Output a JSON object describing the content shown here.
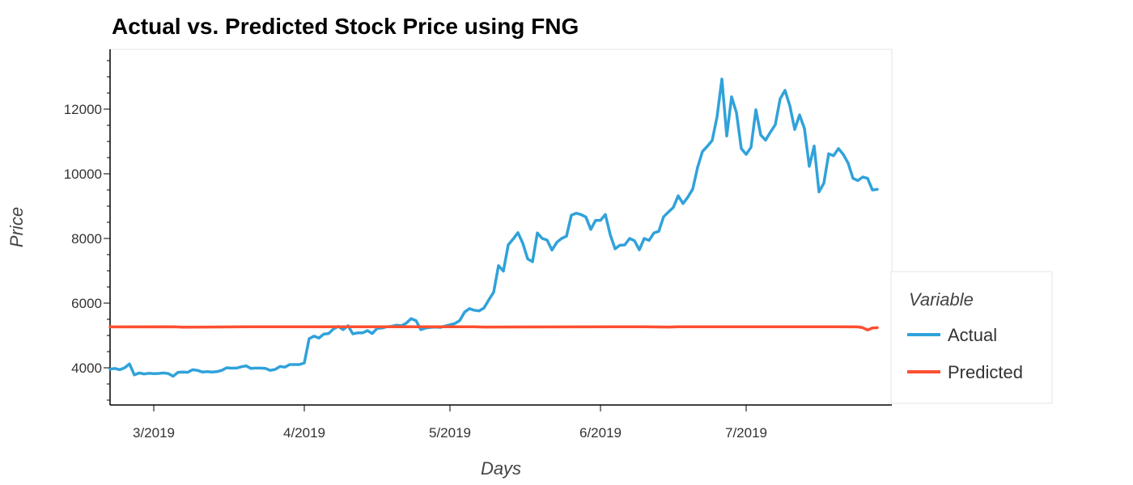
{
  "chart_data": {
    "type": "line",
    "title": "Actual vs. Predicted Stock Price using FNG",
    "xlabel": "Days",
    "ylabel": "Price",
    "x_tick_labels": [
      "3/2019",
      "4/2019",
      "5/2019",
      "6/2019",
      "7/2019"
    ],
    "y_tick_labels": [
      "4000",
      "6000",
      "8000",
      "10000",
      "12000"
    ],
    "ylim": [
      2850,
      13850
    ],
    "xlim": [
      "2019-02-20",
      "2019-07-31"
    ],
    "legend": {
      "title": "Variable",
      "position": "right"
    },
    "grid": false,
    "series": [
      {
        "name": "Actual",
        "color": "#30a2da",
        "points": [
          [
            "2019-02-20",
            3960
          ],
          [
            "2019-02-21",
            3980
          ],
          [
            "2019-02-22",
            3940
          ],
          [
            "2019-02-23",
            4000
          ],
          [
            "2019-02-24",
            4120
          ],
          [
            "2019-02-25",
            3780
          ],
          [
            "2019-02-26",
            3840
          ],
          [
            "2019-02-27",
            3810
          ],
          [
            "2019-02-28",
            3830
          ],
          [
            "2019-03-01",
            3820
          ],
          [
            "2019-03-02",
            3825
          ],
          [
            "2019-03-03",
            3840
          ],
          [
            "2019-03-04",
            3820
          ],
          [
            "2019-03-05",
            3740
          ],
          [
            "2019-03-06",
            3860
          ],
          [
            "2019-03-07",
            3870
          ],
          [
            "2019-03-08",
            3860
          ],
          [
            "2019-03-09",
            3940
          ],
          [
            "2019-03-10",
            3920
          ],
          [
            "2019-03-11",
            3870
          ],
          [
            "2019-03-12",
            3880
          ],
          [
            "2019-03-13",
            3870
          ],
          [
            "2019-03-14",
            3880
          ],
          [
            "2019-03-15",
            3920
          ],
          [
            "2019-03-16",
            4000
          ],
          [
            "2019-03-17",
            3990
          ],
          [
            "2019-03-18",
            3990
          ],
          [
            "2019-03-19",
            4030
          ],
          [
            "2019-03-20",
            4060
          ],
          [
            "2019-03-21",
            3980
          ],
          [
            "2019-03-22",
            3990
          ],
          [
            "2019-03-23",
            3990
          ],
          [
            "2019-03-24",
            3980
          ],
          [
            "2019-03-25",
            3920
          ],
          [
            "2019-03-26",
            3950
          ],
          [
            "2019-03-27",
            4040
          ],
          [
            "2019-03-28",
            4020
          ],
          [
            "2019-03-29",
            4100
          ],
          [
            "2019-03-30",
            4100
          ],
          [
            "2019-03-31",
            4100
          ],
          [
            "2019-04-01",
            4150
          ],
          [
            "2019-04-02",
            4900
          ],
          [
            "2019-04-03",
            4980
          ],
          [
            "2019-04-04",
            4920
          ],
          [
            "2019-04-05",
            5040
          ],
          [
            "2019-04-06",
            5060
          ],
          [
            "2019-04-07",
            5200
          ],
          [
            "2019-04-08",
            5280
          ],
          [
            "2019-04-09",
            5180
          ],
          [
            "2019-04-10",
            5300
          ],
          [
            "2019-04-11",
            5050
          ],
          [
            "2019-04-12",
            5080
          ],
          [
            "2019-04-13",
            5080
          ],
          [
            "2019-04-14",
            5150
          ],
          [
            "2019-04-15",
            5060
          ],
          [
            "2019-04-16",
            5220
          ],
          [
            "2019-04-17",
            5230
          ],
          [
            "2019-04-18",
            5270
          ],
          [
            "2019-04-19",
            5280
          ],
          [
            "2019-04-20",
            5320
          ],
          [
            "2019-04-21",
            5300
          ],
          [
            "2019-04-22",
            5380
          ],
          [
            "2019-04-23",
            5520
          ],
          [
            "2019-04-24",
            5460
          ],
          [
            "2019-04-25",
            5180
          ],
          [
            "2019-04-26",
            5230
          ],
          [
            "2019-04-27",
            5250
          ],
          [
            "2019-04-28",
            5260
          ],
          [
            "2019-04-29",
            5250
          ],
          [
            "2019-04-30",
            5290
          ],
          [
            "2019-05-01",
            5330
          ],
          [
            "2019-05-02",
            5370
          ],
          [
            "2019-05-03",
            5460
          ],
          [
            "2019-05-04",
            5720
          ],
          [
            "2019-05-05",
            5830
          ],
          [
            "2019-05-06",
            5780
          ],
          [
            "2019-05-07",
            5760
          ],
          [
            "2019-05-08",
            5850
          ],
          [
            "2019-05-09",
            6100
          ],
          [
            "2019-05-10",
            6340
          ],
          [
            "2019-05-11",
            7160
          ],
          [
            "2019-05-12",
            6990
          ],
          [
            "2019-05-13",
            7800
          ],
          [
            "2019-05-14",
            7980
          ],
          [
            "2019-05-15",
            8180
          ],
          [
            "2019-05-16",
            7850
          ],
          [
            "2019-05-17",
            7370
          ],
          [
            "2019-05-18",
            7280
          ],
          [
            "2019-05-19",
            8170
          ],
          [
            "2019-05-20",
            8000
          ],
          [
            "2019-05-21",
            7950
          ],
          [
            "2019-05-22",
            7640
          ],
          [
            "2019-05-23",
            7880
          ],
          [
            "2019-05-24",
            8000
          ],
          [
            "2019-05-25",
            8070
          ],
          [
            "2019-05-26",
            8720
          ],
          [
            "2019-05-27",
            8780
          ],
          [
            "2019-05-28",
            8740
          ],
          [
            "2019-05-29",
            8660
          ],
          [
            "2019-05-30",
            8280
          ],
          [
            "2019-05-31",
            8560
          ],
          [
            "2019-06-01",
            8560
          ],
          [
            "2019-06-02",
            8740
          ],
          [
            "2019-06-03",
            8120
          ],
          [
            "2019-06-04",
            7680
          ],
          [
            "2019-06-05",
            7790
          ],
          [
            "2019-06-06",
            7800
          ],
          [
            "2019-06-07",
            8000
          ],
          [
            "2019-06-08",
            7930
          ],
          [
            "2019-06-09",
            7650
          ],
          [
            "2019-06-10",
            8000
          ],
          [
            "2019-06-11",
            7940
          ],
          [
            "2019-06-12",
            8170
          ],
          [
            "2019-06-13",
            8220
          ],
          [
            "2019-06-14",
            8670
          ],
          [
            "2019-06-15",
            8820
          ],
          [
            "2019-06-16",
            8960
          ],
          [
            "2019-06-17",
            9320
          ],
          [
            "2019-06-18",
            9080
          ],
          [
            "2019-06-19",
            9280
          ],
          [
            "2019-06-20",
            9530
          ],
          [
            "2019-06-21",
            10200
          ],
          [
            "2019-06-22",
            10690
          ],
          [
            "2019-06-23",
            10850
          ],
          [
            "2019-06-24",
            11030
          ],
          [
            "2019-06-25",
            11760
          ],
          [
            "2019-06-26",
            12930
          ],
          [
            "2019-06-27",
            11170
          ],
          [
            "2019-06-28",
            12380
          ],
          [
            "2019-06-29",
            11890
          ],
          [
            "2019-06-30",
            10780
          ],
          [
            "2019-07-01",
            10600
          ],
          [
            "2019-07-02",
            10820
          ],
          [
            "2019-07-03",
            11980
          ],
          [
            "2019-07-04",
            11200
          ],
          [
            "2019-07-05",
            11040
          ],
          [
            "2019-07-06",
            11290
          ],
          [
            "2019-07-07",
            11520
          ],
          [
            "2019-07-08",
            12320
          ],
          [
            "2019-07-09",
            12580
          ],
          [
            "2019-07-10",
            12100
          ],
          [
            "2019-07-11",
            11370
          ],
          [
            "2019-07-12",
            11820
          ],
          [
            "2019-07-13",
            11400
          ],
          [
            "2019-07-14",
            10230
          ],
          [
            "2019-07-15",
            10860
          ],
          [
            "2019-07-16",
            9440
          ],
          [
            "2019-07-17",
            9710
          ],
          [
            "2019-07-18",
            10620
          ],
          [
            "2019-07-19",
            10560
          ],
          [
            "2019-07-20",
            10780
          ],
          [
            "2019-07-21",
            10600
          ],
          [
            "2019-07-22",
            10330
          ],
          [
            "2019-07-23",
            9860
          ],
          [
            "2019-07-24",
            9790
          ],
          [
            "2019-07-25",
            9900
          ],
          [
            "2019-07-26",
            9860
          ],
          [
            "2019-07-27",
            9500
          ],
          [
            "2019-07-28",
            9520
          ]
        ]
      },
      {
        "name": "Predicted",
        "color": "#fc4f30",
        "points": [
          [
            "2019-02-20",
            5265
          ],
          [
            "2019-03-05",
            5270
          ],
          [
            "2019-03-07",
            5255
          ],
          [
            "2019-03-20",
            5270
          ],
          [
            "2019-04-10",
            5270
          ],
          [
            "2019-05-06",
            5270
          ],
          [
            "2019-05-08",
            5260
          ],
          [
            "2019-06-10",
            5270
          ],
          [
            "2019-06-15",
            5260
          ],
          [
            "2019-06-17",
            5270
          ],
          [
            "2019-07-20",
            5270
          ],
          [
            "2019-07-24",
            5265
          ],
          [
            "2019-07-25",
            5240
          ],
          [
            "2019-07-26",
            5170
          ],
          [
            "2019-07-27",
            5230
          ],
          [
            "2019-07-28",
            5240
          ]
        ]
      }
    ]
  }
}
